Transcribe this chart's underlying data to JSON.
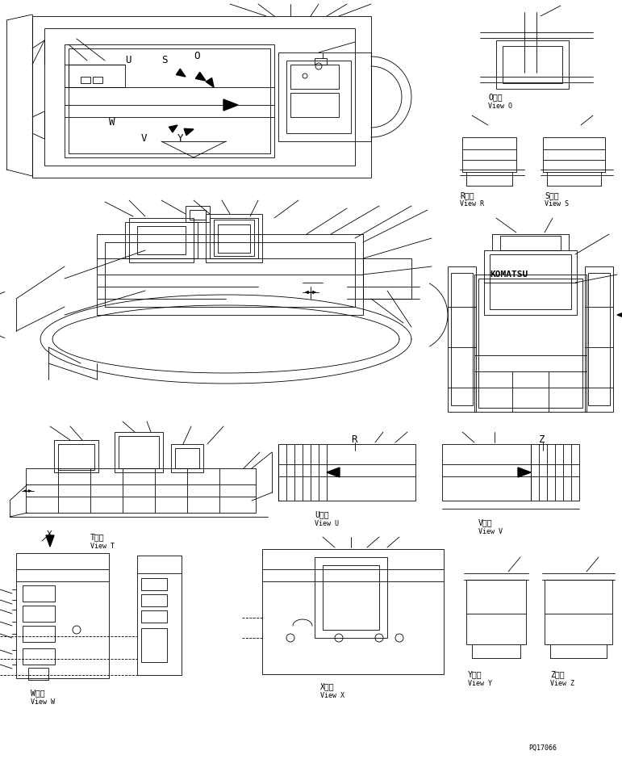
{
  "background_color": "#ffffff",
  "line_color": "#000000",
  "text_color": "#000000",
  "part_number": "PQ17066",
  "lw": 0.6,
  "views": {
    "O": {
      "label": "O　視",
      "sublabel": "View O"
    },
    "R": {
      "label": "R　視",
      "sublabel": "View R"
    },
    "S": {
      "label": "S　視",
      "sublabel": "View S"
    },
    "T": {
      "label": "T　視",
      "sublabel": "View T"
    },
    "U": {
      "label": "U　視",
      "sublabel": "View U"
    },
    "V": {
      "label": "V　視",
      "sublabel": "View V"
    },
    "W": {
      "label": "W　視",
      "sublabel": "View W"
    },
    "X": {
      "label": "X　視",
      "sublabel": "View X"
    },
    "Y": {
      "label": "Y　視",
      "sublabel": "View Y"
    },
    "Z": {
      "label": "Z　視",
      "sublabel": "View Z"
    }
  },
  "font_size_label": 7,
  "font_size_sublabel": 6,
  "font_size_part": 6
}
